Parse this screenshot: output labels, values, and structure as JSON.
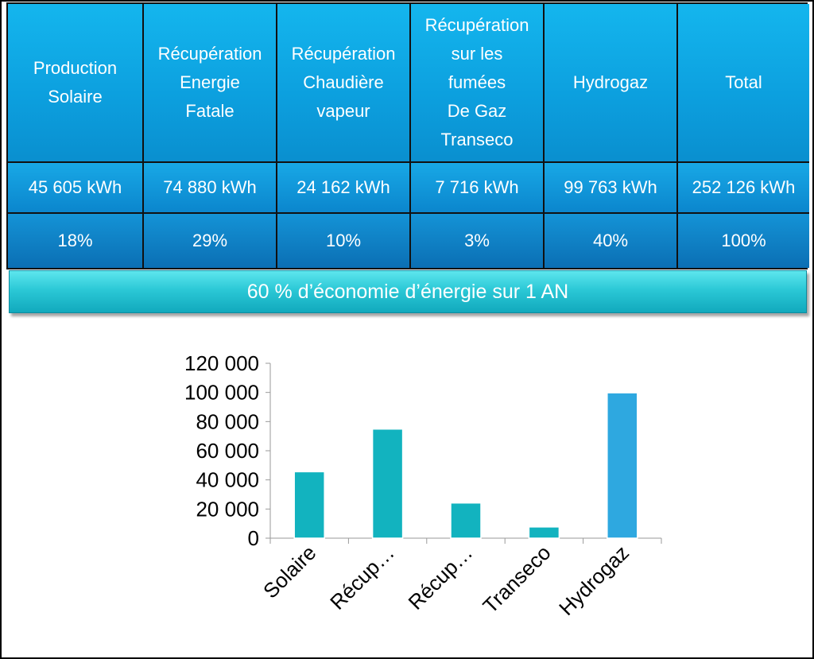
{
  "table": {
    "headers": [
      "Production\nSolaire",
      "Récupération\nEnergie\nFatale",
      "Récupération\nChaudière\nvapeur",
      "Récupération\nsur les\nfumées\nDe Gaz\nTranseco",
      "Hydrogaz",
      "Total"
    ],
    "energies": [
      "45 605 kWh",
      "74 880 kWh",
      "24 162 kWh",
      "7 716 kWh",
      "99 763 kWh",
      "252 126 kWh"
    ],
    "percentages": [
      "18%",
      "29%",
      "10%",
      "3%",
      "40%",
      "100%"
    ]
  },
  "banner": "60 % d’économie d’énergie sur 1 AN",
  "chart_data": {
    "type": "bar",
    "categories": [
      "Solaire",
      "Récup…",
      "Récup…",
      "Transeco",
      "Hydrogaz"
    ],
    "values": [
      45605,
      74880,
      24162,
      7716,
      99763
    ],
    "colors": [
      "#12b3bf",
      "#12b3bf",
      "#12b3bf",
      "#12b3bf",
      "#2ea8e0"
    ],
    "ylim": [
      0,
      120000
    ],
    "yticks": [
      0,
      20000,
      40000,
      60000,
      80000,
      100000,
      120000
    ],
    "ytick_labels": [
      "0",
      "20 000",
      "40 000",
      "60 000",
      "80 000",
      "100 000",
      "120 000"
    ],
    "grid": false,
    "title": "",
    "xlabel": "",
    "ylabel": ""
  }
}
